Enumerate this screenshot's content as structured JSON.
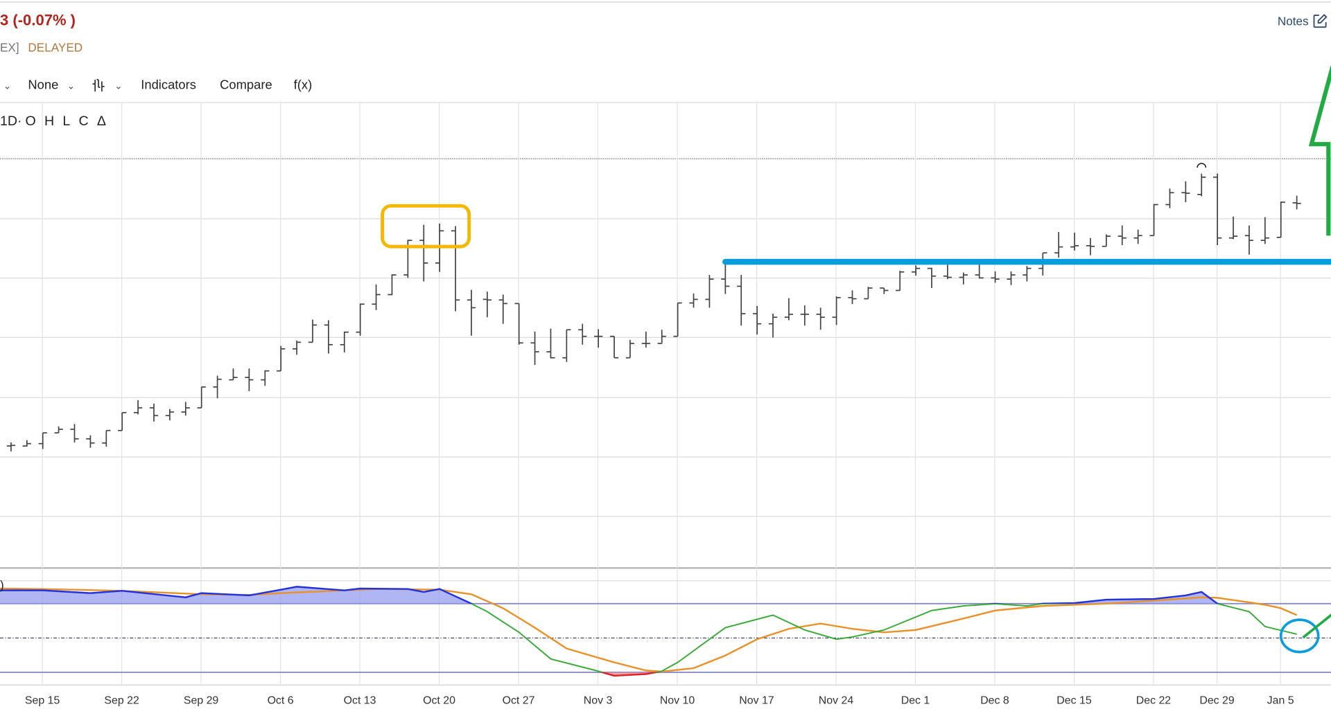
{
  "header": {
    "price_change": "3 (-0.07% )",
    "exchange": "EX]",
    "status": "DELAYED",
    "notes_label": "Notes"
  },
  "toolbar": {
    "first_dropdown_chevron": "⌄",
    "overlay_select": "None",
    "chart_type_icon": "ohlc-bars-icon",
    "indicators": "Indicators",
    "compare": "Compare",
    "fx": "f(x)"
  },
  "legend": {
    "interval": "1D·",
    "open": "O",
    "high": "H",
    "low": "L",
    "close": "C",
    "change": "Δ"
  },
  "indicator_label": ")",
  "colors": {
    "price_negative": "#b3241d",
    "delayed": "#b27a3e",
    "bars": "#444444",
    "k_line_normal": "#3aaa3a",
    "k_line_overbought": "#2233dd",
    "k_line_oversold": "#e02020",
    "d_line": "#e8922c",
    "overbought_fill": "#8f95f0",
    "annotation_yellow": "#f5b800",
    "annotation_blue": "#0a9ddc",
    "annotation_green": "#22aa44"
  },
  "chart_data": [
    {
      "type": "ohlc",
      "grid": true,
      "x_tick_labels": [
        "Sep 15",
        "Sep 22",
        "Sep 29",
        "Oct 6",
        "Oct 13",
        "Oct 20",
        "Oct 27",
        "Nov 3",
        "Nov 10",
        "Nov 17",
        "Nov 24",
        "Dec 1",
        "Dec 8",
        "Dec 15",
        "Dec 22",
        "Dec 29",
        "Jan 5"
      ],
      "reference_level": 600,
      "bar_fields": [
        "date",
        "open",
        "high",
        "low",
        "close"
      ],
      "bars": [
        [
          "Sep 11",
          118,
          124,
          109,
          119
        ],
        [
          "Sep 12",
          118,
          128,
          117,
          122
        ],
        [
          "Sep 15",
          122,
          140,
          113,
          140
        ],
        [
          "Sep 16",
          140,
          151,
          140,
          146
        ],
        [
          "Sep 17",
          146,
          155,
          124,
          130
        ],
        [
          "Sep 18",
          130,
          136,
          115,
          123
        ],
        [
          "Sep 19",
          123,
          144,
          117,
          144
        ],
        [
          "Sep 22",
          144,
          174,
          144,
          174
        ],
        [
          "Sep 23",
          174,
          195,
          171,
          182
        ],
        [
          "Sep 24",
          182,
          189,
          159,
          169
        ],
        [
          "Sep 25",
          169,
          180,
          161,
          175
        ],
        [
          "Sep 26",
          175,
          192,
          169,
          182
        ],
        [
          "Sep 29",
          182,
          217,
          182,
          217
        ],
        [
          "Sep 30",
          217,
          236,
          198,
          230
        ],
        [
          "Oct 1",
          229,
          248,
          229,
          233
        ],
        [
          "Oct 2",
          233,
          248,
          210,
          229
        ],
        [
          "Oct 3",
          229,
          245,
          219,
          244
        ],
        [
          "Oct 6",
          244,
          286,
          244,
          281
        ],
        [
          "Oct 7",
          281,
          295,
          271,
          292
        ],
        [
          "Oct 8",
          292,
          330,
          292,
          321
        ],
        [
          "Oct 9",
          321,
          329,
          273,
          288
        ],
        [
          "Oct 10",
          288,
          310,
          275,
          309
        ],
        [
          "Oct 13",
          309,
          357,
          303,
          356
        ],
        [
          "Oct 14",
          356,
          389,
          346,
          372
        ],
        [
          "Oct 15",
          372,
          406,
          371,
          405
        ],
        [
          "Oct 16",
          405,
          464,
          400,
          463
        ],
        [
          "Oct 17",
          463,
          489,
          394,
          425
        ],
        [
          "Oct 20",
          425,
          491,
          410,
          479
        ],
        [
          "Oct 21",
          479,
          487,
          344,
          363
        ],
        [
          "Oct 22",
          363,
          380,
          303,
          350
        ],
        [
          "Oct 23",
          364,
          377,
          334,
          363
        ],
        [
          "Oct 24",
          363,
          372,
          323,
          357
        ],
        [
          "Oct 27",
          357,
          357,
          288,
          291
        ],
        [
          "Oct 28",
          291,
          310,
          254,
          276
        ],
        [
          "Oct 29",
          276,
          315,
          265,
          266
        ],
        [
          "Oct 30",
          266,
          313,
          259,
          313
        ],
        [
          "Oct 31",
          313,
          323,
          288,
          302
        ],
        [
          "Nov 3",
          302,
          314,
          283,
          302
        ],
        [
          "Nov 4",
          302,
          302,
          266,
          266
        ],
        [
          "Nov 5",
          266,
          296,
          266,
          290
        ],
        [
          "Nov 6",
          290,
          310,
          283,
          290
        ],
        [
          "Nov 7",
          290,
          313,
          290,
          302
        ],
        [
          "Nov 10",
          302,
          358,
          302,
          358
        ],
        [
          "Nov 11",
          358,
          374,
          350,
          364
        ],
        [
          "Nov 12",
          364,
          405,
          350,
          398
        ],
        [
          "Nov 13",
          398,
          425,
          373,
          386
        ],
        [
          "Nov 14",
          386,
          405,
          320,
          340
        ],
        [
          "Nov 17",
          340,
          353,
          305,
          323
        ],
        [
          "Nov 18",
          323,
          340,
          300,
          334
        ],
        [
          "Nov 19",
          334,
          366,
          329,
          339
        ],
        [
          "Nov 20",
          339,
          354,
          320,
          339
        ],
        [
          "Nov 21",
          339,
          350,
          313,
          334
        ],
        [
          "Nov 24",
          334,
          369,
          321,
          367
        ],
        [
          "Nov 25",
          367,
          379,
          356,
          365
        ],
        [
          "Nov 26",
          365,
          385,
          365,
          383
        ],
        [
          "Nov 27",
          383,
          383,
          373,
          379
        ],
        [
          "Nov 28",
          379,
          412,
          379,
          410
        ],
        [
          "Dec 1",
          410,
          421,
          404,
          416
        ],
        [
          "Dec 2",
          416,
          417,
          383,
          403
        ],
        [
          "Dec 3",
          403,
          422,
          398,
          401
        ],
        [
          "Dec 4",
          401,
          409,
          389,
          405
        ],
        [
          "Dec 5",
          405,
          423,
          399,
          400
        ],
        [
          "Dec 8",
          400,
          411,
          392,
          398
        ],
        [
          "Dec 9",
          398,
          411,
          388,
          405
        ],
        [
          "Dec 10",
          405,
          420,
          394,
          416
        ],
        [
          "Dec 11",
          416,
          442,
          404,
          442
        ],
        [
          "Dec 12",
          442,
          477,
          434,
          452
        ],
        [
          "Dec 15",
          452,
          476,
          446,
          454
        ],
        [
          "Dec 16",
          454,
          467,
          438,
          453
        ],
        [
          "Dec 17",
          453,
          473,
          453,
          470
        ],
        [
          "Dec 18",
          470,
          488,
          455,
          467
        ],
        [
          "Dec 19",
          467,
          481,
          457,
          471
        ],
        [
          "Dec 22",
          471,
          524,
          471,
          523
        ],
        [
          "Dec 23",
          523,
          550,
          517,
          543
        ],
        [
          "Dec 24",
          543,
          562,
          527,
          542
        ],
        [
          "Dec 26",
          540,
          575,
          537,
          569
        ],
        [
          "Dec 29",
          569,
          575,
          455,
          467
        ],
        [
          "Dec 30",
          467,
          503,
          465,
          470
        ],
        [
          "Dec 31",
          471,
          488,
          439,
          463
        ],
        [
          "Jan 2",
          463,
          502,
          457,
          467
        ],
        [
          "Jan 5",
          468,
          528,
          468,
          527
        ],
        [
          "Jan 6",
          526,
          538,
          515,
          525
        ]
      ]
    },
    {
      "type": "line",
      "ylim": [
        0,
        100
      ],
      "bands": [
        80,
        50,
        20
      ],
      "series": [
        {
          "points": [
            [
              "Sep 11",
              91.6
            ],
            [
              "Sep 15",
              91.6
            ],
            [
              "Sep 18",
              89.2
            ],
            [
              "Sep 22",
              91.2
            ],
            [
              "Sep 26",
              85.5
            ],
            [
              "Sep 29",
              89.2
            ],
            [
              "Oct 2",
              87.2
            ],
            [
              "Oct 6",
              92.2
            ],
            [
              "Oct 7",
              94.8
            ],
            [
              "Oct 10",
              91.6
            ],
            [
              "Oct 13",
              93.2
            ],
            [
              "Oct 16",
              92.8
            ],
            [
              "Oct 17",
              90.2
            ],
            [
              "Oct 20",
              92.8
            ],
            [
              "Oct 22",
              80
            ],
            [
              "Oct 23",
              73
            ],
            [
              "Oct 27",
              55
            ],
            [
              "Oct 29",
              31.7
            ],
            [
              "Nov 3",
              21
            ],
            [
              "Nov 4",
              17
            ],
            [
              "Nov 6",
              18.5
            ],
            [
              "Nov 7",
              21
            ],
            [
              "Nov 10",
              28.7
            ],
            [
              "Nov 13",
              59
            ],
            [
              "Nov 18",
              70
            ],
            [
              "Nov 20",
              57
            ],
            [
              "Nov 24",
              48.9
            ],
            [
              "Nov 25",
              50.9
            ],
            [
              "Nov 27",
              57
            ],
            [
              "Dec 2",
              74
            ],
            [
              "Dec 4",
              78
            ],
            [
              "Dec 8",
              79.9
            ],
            [
              "Dec 10",
              78
            ],
            [
              "Dec 11",
              80
            ],
            [
              "Dec 15",
              80.5
            ],
            [
              "Dec 17",
              83.5
            ],
            [
              "Dec 22",
              84.1
            ],
            [
              "Dec 24",
              87.2
            ],
            [
              "Dec 26",
              90.2
            ],
            [
              "Dec 29",
              80
            ],
            [
              "Dec 31",
              73
            ],
            [
              "Jan 2",
              60
            ],
            [
              "Jan 6",
              53.3
            ]
          ]
        },
        {
          "points": [
            [
              "Sep 11",
              93.2
            ],
            [
              "Sep 15",
              92.8
            ],
            [
              "Sep 22",
              91.2
            ],
            [
              "Sep 29",
              88.2
            ],
            [
              "Oct 2",
              87.6
            ],
            [
              "Oct 6",
              89.2
            ],
            [
              "Oct 10",
              91.6
            ],
            [
              "Oct 14",
              92.8
            ],
            [
              "Oct 20",
              92.2
            ],
            [
              "Oct 22",
              88.2
            ],
            [
              "Oct 24",
              76
            ],
            [
              "Oct 28",
              59
            ],
            [
              "Oct 30",
              40.8
            ],
            [
              "Nov 4",
              28.7
            ],
            [
              "Nov 6",
              21.6
            ],
            [
              "Nov 7",
              20.6
            ],
            [
              "Nov 11",
              23.6
            ],
            [
              "Nov 13",
              34.7
            ],
            [
              "Nov 17",
              48.9
            ],
            [
              "Nov 19",
              58
            ],
            [
              "Nov 21",
              62.6
            ],
            [
              "Nov 25",
              58
            ],
            [
              "Nov 27",
              54.9
            ],
            [
              "Dec 1",
              57
            ],
            [
              "Dec 4",
              67
            ],
            [
              "Dec 8",
              74
            ],
            [
              "Dec 11",
              78
            ],
            [
              "Dec 17",
              80
            ],
            [
              "Dec 22",
              82.7
            ],
            [
              "Dec 26",
              85.5
            ],
            [
              "Dec 29",
              85.1
            ],
            [
              "Dec 31",
              81.1
            ],
            [
              "Jan 2",
              79
            ],
            [
              "Jan 5",
              76
            ],
            [
              "Jan 6",
              70
            ]
          ]
        }
      ]
    }
  ],
  "annotations": {
    "support_line_level": 427,
    "support_line_start": "Nov 13",
    "highlight_box": [
      "Oct 16",
      "Oct 21"
    ],
    "peak_marker": "Dec 26"
  }
}
